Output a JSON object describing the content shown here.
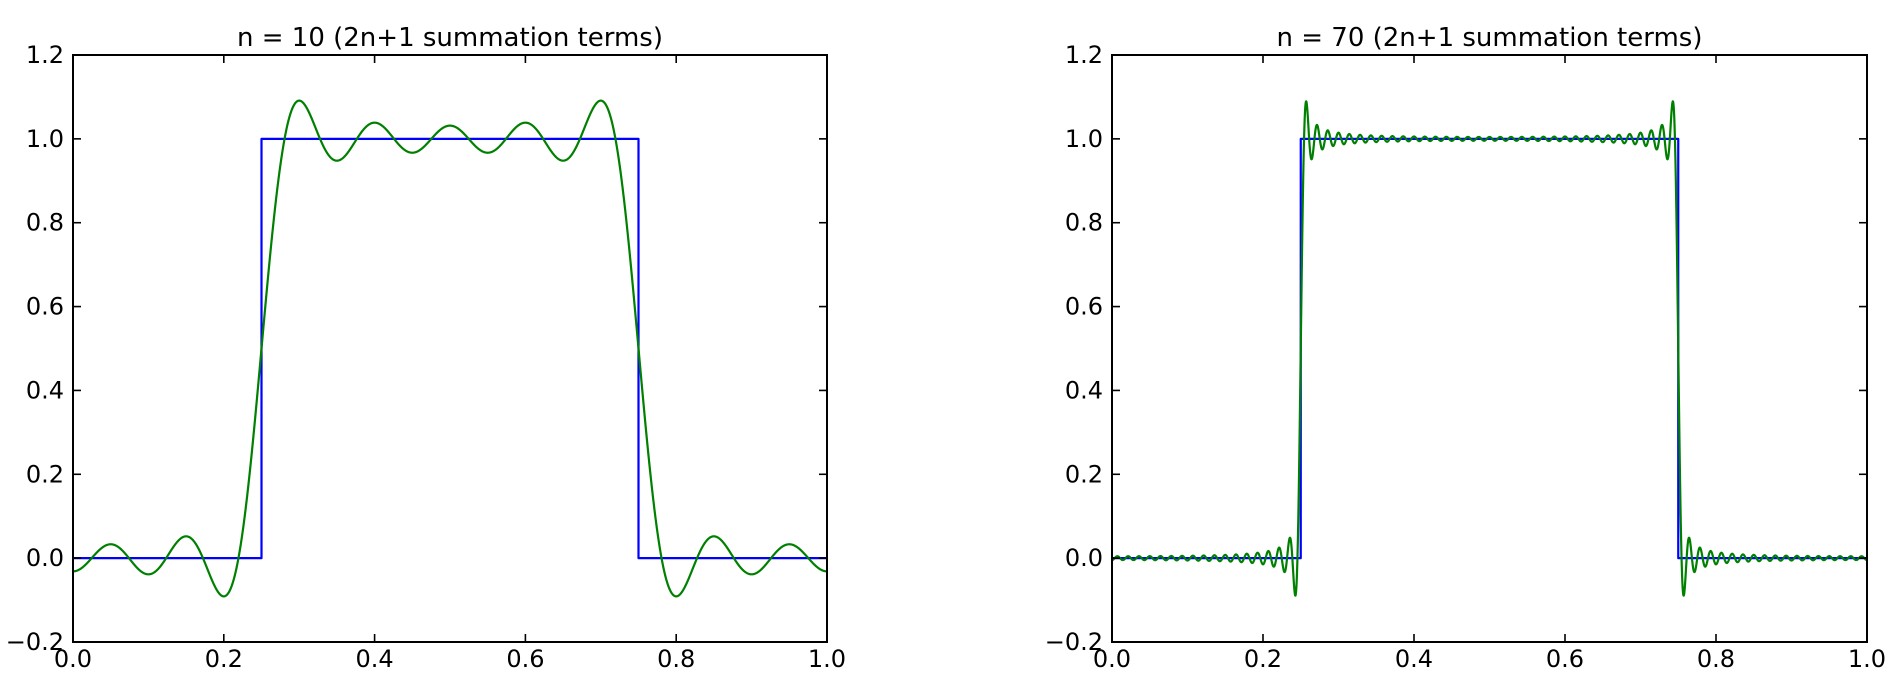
{
  "figure": {
    "background_color": "#ffffff",
    "axes_color": "#000000",
    "description": "Two side-by-side plots of Fourier series partial sums approximating a unit square wave, showing the Gibbs phenomenon"
  },
  "chart_data": [
    {
      "type": "line",
      "title": "n = 10 (2n+1 summation terms)",
      "xlabel": "",
      "ylabel": "",
      "xlim": [
        0.0,
        1.0
      ],
      "ylim": [
        -0.2,
        1.2
      ],
      "grid": false,
      "legend": "none",
      "x_ticks": [
        {
          "value": 0.0,
          "label": "0.0"
        },
        {
          "value": 0.2,
          "label": "0.2"
        },
        {
          "value": 0.4,
          "label": "0.4"
        },
        {
          "value": 0.6,
          "label": "0.6"
        },
        {
          "value": 0.8,
          "label": "0.8"
        },
        {
          "value": 1.0,
          "label": "1.0"
        }
      ],
      "y_ticks": [
        {
          "value": -0.2,
          "label": "−0.2"
        },
        {
          "value": 0.0,
          "label": "0.0"
        },
        {
          "value": 0.2,
          "label": "0.2"
        },
        {
          "value": 0.4,
          "label": "0.4"
        },
        {
          "value": 0.6,
          "label": "0.6"
        },
        {
          "value": 0.8,
          "label": "0.8"
        },
        {
          "value": 1.0,
          "label": "1.0"
        },
        {
          "value": 1.2,
          "label": "1.2"
        }
      ],
      "series": [
        {
          "name": "square-wave",
          "color": "#0000ff",
          "shape": "polyline",
          "points": [
            [
              0.0,
              0.0
            ],
            [
              0.25,
              0.0
            ],
            [
              0.25,
              1.0
            ],
            [
              0.75,
              1.0
            ],
            [
              0.75,
              0.0
            ],
            [
              1.0,
              0.0
            ]
          ]
        },
        {
          "name": "fourier-partial-sum",
          "color": "#008000",
          "shape": "fourier_square_sum",
          "n": 10,
          "odd_harmonics_max": 9,
          "mean": 0.5,
          "coefficient": "2/pi",
          "overshoot_peak": 1.09,
          "undershoot_min": -0.09,
          "value_at_x0": -0.03
        }
      ]
    },
    {
      "type": "line",
      "title": "n = 70 (2n+1 summation terms)",
      "xlabel": "",
      "ylabel": "",
      "xlim": [
        0.0,
        1.0
      ],
      "ylim": [
        -0.2,
        1.2
      ],
      "grid": false,
      "legend": "none",
      "x_ticks": [
        {
          "value": 0.0,
          "label": "0.0"
        },
        {
          "value": 0.2,
          "label": "0.2"
        },
        {
          "value": 0.4,
          "label": "0.4"
        },
        {
          "value": 0.6,
          "label": "0.6"
        },
        {
          "value": 0.8,
          "label": "0.8"
        },
        {
          "value": 1.0,
          "label": "1.0"
        }
      ],
      "y_ticks": [
        {
          "value": -0.2,
          "label": "−0.2"
        },
        {
          "value": 0.0,
          "label": "0.0"
        },
        {
          "value": 0.2,
          "label": "0.2"
        },
        {
          "value": 0.4,
          "label": "0.4"
        },
        {
          "value": 0.6,
          "label": "0.6"
        },
        {
          "value": 0.8,
          "label": "0.8"
        },
        {
          "value": 1.0,
          "label": "1.0"
        },
        {
          "value": 1.2,
          "label": "1.2"
        }
      ],
      "series": [
        {
          "name": "square-wave",
          "color": "#0000ff",
          "shape": "polyline",
          "points": [
            [
              0.0,
              0.0
            ],
            [
              0.25,
              0.0
            ],
            [
              0.25,
              1.0
            ],
            [
              0.75,
              1.0
            ],
            [
              0.75,
              0.0
            ],
            [
              1.0,
              0.0
            ]
          ]
        },
        {
          "name": "fourier-partial-sum",
          "color": "#008000",
          "shape": "fourier_square_sum",
          "n": 70,
          "odd_harmonics_max": 69,
          "mean": 0.5,
          "coefficient": "2/pi",
          "overshoot_peak": 1.09,
          "undershoot_min": -0.09,
          "value_at_x0": -0.005
        }
      ]
    }
  ]
}
